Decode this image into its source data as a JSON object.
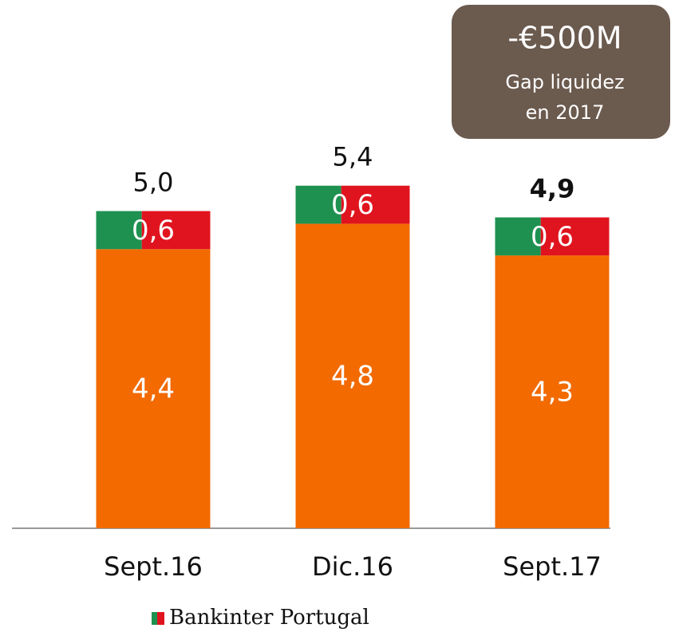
{
  "chart_data": {
    "type": "stacked_bar",
    "categories": [
      "Sept.16",
      "Dic.16",
      "Sept.17"
    ],
    "series": [
      {
        "color": "#f26a00",
        "values": [
          4.4,
          4.8,
          4.3
        ],
        "value_labels": [
          "4,4",
          "4,8",
          "4,3"
        ]
      },
      {
        "name": "Bankinter Portugal",
        "colors": [
          "#1e9150",
          "#e0141e"
        ],
        "values": [
          0.6,
          0.6,
          0.6
        ],
        "value_labels": [
          "0,6",
          "0,6",
          "0,6"
        ]
      }
    ],
    "totals": [
      5.0,
      5.4,
      4.9
    ],
    "total_labels": [
      "5,0",
      "5,4",
      "4,9"
    ],
    "ylim": [
      0,
      8
    ],
    "annotation": {
      "headline": "-€500M",
      "lines": [
        "Gap liquidez",
        "en 2017"
      ]
    }
  }
}
